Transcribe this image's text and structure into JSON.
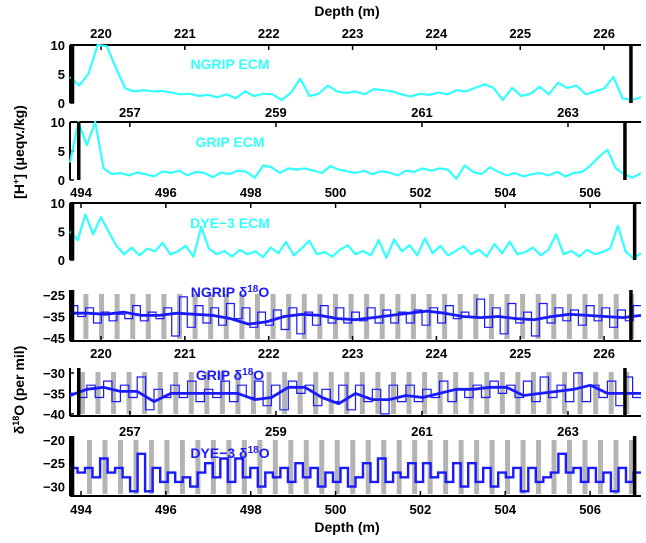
{
  "chart_data": {
    "type": "line",
    "top_xlabel": "Depth (m)",
    "bottom_xlabel": "Depth (m)",
    "ylabel_ecm": {
      "main": "[H",
      "sup": "+",
      "rest": "] (μeqv./kg)"
    },
    "ylabel_d18o": {
      "main": "δ",
      "sup": "18",
      "rest": "O (per mil)"
    },
    "colors": {
      "ecm": "#33ffff",
      "d18o": "#1a1aff",
      "layer_mark": "#b4b4b4",
      "marker": "#000000"
    },
    "depth_axes": {
      "ngrip": {
        "xlim": [
          219.63,
          226.44
        ],
        "ticks": [
          220,
          221,
          222,
          223,
          224,
          225,
          226
        ]
      },
      "grip": {
        "xlim": [
          256.18,
          264.0
        ],
        "ticks": [
          257,
          259,
          261,
          263
        ]
      },
      "dye3": {
        "xlim": [
          493.74,
          507.2
        ],
        "ticks": [
          494,
          496,
          498,
          500,
          502,
          504,
          506
        ]
      }
    },
    "panels": [
      {
        "id": "ngrip-ecm",
        "title": "NGRIP ECM",
        "core": "ngrip",
        "kind": "ecm",
        "ylim": [
          0,
          10
        ],
        "yticks": [
          0,
          5,
          10
        ],
        "markers": [
          219.66,
          226.32
        ],
        "values": [
          4.5,
          3,
          5,
          10,
          9.8,
          6,
          2.5,
          2,
          2.2,
          2,
          2.1,
          1.8,
          1.5,
          1.6,
          1.2,
          1.4,
          1,
          1.5,
          0.8,
          2,
          1.2,
          1.6,
          1.5,
          0.5,
          1.8,
          4.2,
          1.2,
          1.6,
          3,
          2,
          1.7,
          2,
          1.5,
          2.4,
          2.2,
          2,
          1.5,
          1.1,
          1.6,
          1.4,
          1.8,
          1.5,
          2.2,
          2,
          2.6,
          3.2,
          2.6,
          0.5,
          2.6,
          1.2,
          1.6,
          2.8,
          1.5,
          3.5,
          2.6,
          3,
          1.5,
          2,
          2.5,
          4.5,
          0.8,
          0.5,
          1
        ]
      },
      {
        "id": "grip-ecm",
        "title": "GRIP ECM",
        "core": "grip",
        "kind": "ecm",
        "ylim": [
          0,
          10
        ],
        "yticks": [
          0,
          5,
          10
        ],
        "markers": [
          256.3,
          263.78
        ],
        "values": [
          3,
          10,
          6,
          10,
          2,
          1,
          1.2,
          0.8,
          1.3,
          1,
          0.6,
          1.5,
          1.2,
          1.6,
          0.8,
          1.4,
          1.2,
          0.5,
          1.3,
          1,
          1.6,
          1.4,
          0.4,
          2.5,
          2.2,
          1.2,
          2,
          1.8,
          2,
          1.6,
          1.2,
          2.4,
          1.8,
          1.5,
          1.2,
          1.6,
          1,
          1.5,
          1.3,
          0.8,
          1.6,
          1.4,
          2,
          1.6,
          2,
          1.8,
          0.2,
          2.5,
          1.4,
          1,
          2.2,
          1.4,
          0.8,
          1.2,
          0.6,
          1,
          1.2,
          0.8,
          1.4,
          0.6,
          1.2,
          1.4,
          2.5,
          4,
          5.2,
          2,
          1,
          0.4,
          1.2
        ]
      },
      {
        "id": "dye3-ecm",
        "title": "DYE−3 ECM",
        "core": "dye3",
        "kind": "ecm",
        "ylim": [
          0,
          10
        ],
        "yticks": [
          0,
          5,
          10
        ],
        "markers": [
          493.8,
          507.05
        ],
        "values": [
          5,
          3.5,
          8,
          4.5,
          7.5,
          5,
          2.5,
          1,
          2.2,
          0.8,
          2,
          1.5,
          3,
          1,
          1.5,
          2.5,
          0.6,
          5.8,
          2,
          1,
          1.6,
          0.6,
          1.8,
          1,
          1.5,
          0.5,
          2.2,
          1.2,
          3.2,
          0.8,
          2,
          3.4,
          1,
          1.4,
          0.6,
          1.8,
          2.6,
          1,
          1.6,
          0.8,
          3.5,
          0.4,
          3.6,
          1.5,
          2.6,
          0.8,
          3.8,
          1.2,
          2.5,
          0.8,
          1.6,
          2.4,
          1,
          1.8,
          0.6,
          2.8,
          1.2,
          3.2,
          1,
          1.4,
          2.2,
          0.8,
          1.8,
          4.5,
          1,
          1.6,
          0.6,
          1.8,
          1,
          1.4,
          2,
          6,
          1.5,
          0.3,
          1.2
        ]
      },
      {
        "id": "ngrip-d18o",
        "title": "NGRIP δ",
        "title_sup": "18",
        "title_end": "O",
        "core": "ngrip",
        "kind": "d18o",
        "ylim": [
          -46.3,
          -22.8
        ],
        "yticks": [
          -25,
          -35,
          -45
        ],
        "markers": [
          219.66,
          226.32
        ],
        "layer_marks": {
          "start": 219.82,
          "step": 0.186,
          "count": 36
        },
        "values": [
          -30,
          -35,
          -31,
          -38,
          -33,
          -37,
          -34,
          -36,
          -30,
          -37,
          -33,
          -36,
          -31,
          -44,
          -26,
          -40,
          -30,
          -38,
          -31,
          -39,
          -29,
          -36,
          -31,
          -40,
          -33,
          -39,
          -32,
          -41,
          -31,
          -43,
          -33,
          -39,
          -30,
          -38,
          -31,
          -38,
          -33,
          -37,
          -31,
          -38,
          -32,
          -38,
          -33,
          -38,
          -32,
          -39,
          -31,
          -38,
          -30,
          -36,
          -33,
          -35,
          -27,
          -40,
          -31,
          -43,
          -29,
          -38,
          -33,
          -44,
          -29,
          -38,
          -31,
          -37,
          -32,
          -39,
          -30,
          -37,
          -31,
          -40,
          -32,
          -37,
          -30
        ],
        "smooth": [
          -33.5,
          -33.5,
          -34,
          -33,
          -34.5,
          -34.5,
          -33.5,
          -34,
          -34.5,
          -36,
          -38.5,
          -37.5,
          -35,
          -34,
          -34.5,
          -36,
          -36.5,
          -35.5,
          -34.5,
          -33.5,
          -32.5,
          -33.5,
          -35,
          -35.5,
          -35,
          -36,
          -36.5,
          -35,
          -34,
          -34.5,
          -35,
          -35.5,
          -34.5
        ]
      },
      {
        "id": "grip-d18o",
        "title": "GRIP δ",
        "title_sup": "18",
        "title_end": "O",
        "core": "grip",
        "kind": "d18o",
        "ylim": [
          -40.5,
          -28.8
        ],
        "yticks": [
          -30,
          -35,
          -40
        ],
        "markers": [
          256.3,
          263.78
        ],
        "layer_marks": {
          "start": 256.35,
          "step": 0.213,
          "count": 37
        },
        "values": [
          -35,
          -36,
          -33,
          -36,
          -32,
          -37,
          -33,
          -36,
          -31,
          -39,
          -34,
          -36,
          -33,
          -36,
          -32,
          -37,
          -34,
          -36,
          -32,
          -37,
          -33,
          -36,
          -32,
          -38,
          -33,
          -39,
          -32,
          -35,
          -33,
          -38,
          -34,
          -37,
          -33,
          -39,
          -33,
          -37,
          -34,
          -40,
          -33,
          -37,
          -33,
          -37,
          -34,
          -36,
          -32,
          -37,
          -34,
          -36,
          -33,
          -36,
          -32,
          -35,
          -33,
          -36,
          -32,
          -37,
          -31,
          -36,
          -33,
          -37,
          -30,
          -37,
          -33,
          -36,
          -32,
          -38,
          -31,
          -36
        ],
        "smooth": [
          -35.5,
          -34,
          -33.5,
          -34.5,
          -34.5,
          -37,
          -35,
          -35,
          -35,
          -35,
          -35,
          -36.5,
          -36,
          -33.5,
          -33.5,
          -36,
          -37.5,
          -35,
          -36.5,
          -36.5,
          -35.5,
          -36,
          -35,
          -34,
          -34,
          -33.5,
          -33.5,
          -35.5,
          -35,
          -34.5,
          -34,
          -33,
          -35,
          -35,
          -35
        ]
      },
      {
        "id": "dye3-d18o",
        "title": "DYE−3 δ",
        "title_sup": "18",
        "title_end": "O",
        "core": "dye3",
        "kind": "d18o",
        "ylim": [
          -32,
          -19.2
        ],
        "yticks": [
          -20,
          -25,
          -30
        ],
        "markers": [
          493.8,
          507.05
        ],
        "layer_marks": {
          "start": 494.2,
          "step": 0.365,
          "count": 37
        },
        "values": [
          -26,
          -27,
          -26,
          -28,
          -24,
          -27,
          -26,
          -28,
          -31,
          -23,
          -31,
          -26,
          -29,
          -27,
          -29,
          -28,
          -30,
          -27,
          -25,
          -28,
          -24,
          -29,
          -24,
          -28,
          -26,
          -30,
          -27,
          -28,
          -26,
          -29,
          -25,
          -28,
          -26,
          -30,
          -27,
          -29,
          -26,
          -30,
          -28,
          -25,
          -29,
          -24,
          -29,
          -27,
          -28,
          -25,
          -29,
          -25,
          -28,
          -27,
          -29,
          -25,
          -30,
          -25,
          -29,
          -26,
          -30,
          -27,
          -28,
          -26,
          -31,
          -26,
          -29,
          -28,
          -27,
          -23,
          -27,
          -26,
          -29,
          -26,
          -29,
          -27,
          -31,
          -26,
          -29,
          -27
        ]
      }
    ]
  }
}
